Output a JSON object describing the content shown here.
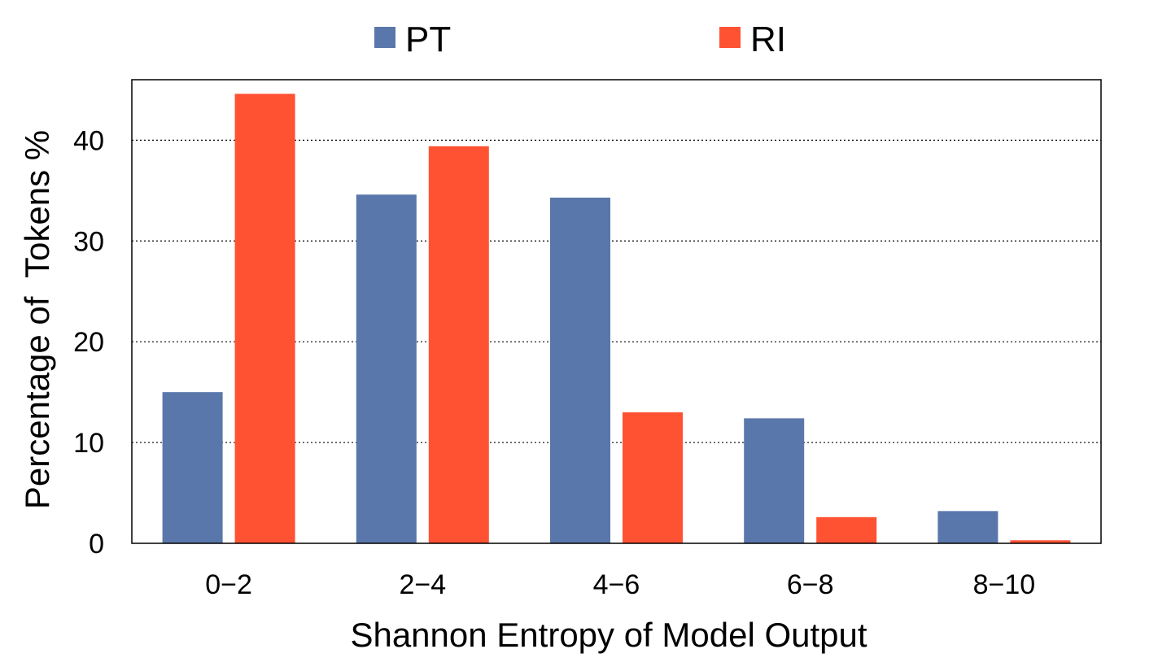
{
  "chart_data": {
    "type": "bar",
    "categories": [
      "0−2",
      "2−4",
      "4−6",
      "6−8",
      "8−10"
    ],
    "series": [
      {
        "name": "PT",
        "color": "#5a77ab",
        "values": [
          15.0,
          34.6,
          34.3,
          12.4,
          3.2
        ]
      },
      {
        "name": "RI",
        "color": "#ff5233",
        "values": [
          44.6,
          39.4,
          13.0,
          2.6,
          0.3
        ]
      }
    ],
    "xlabel": "Shannon Entropy of Model Output",
    "ylabel": "Percentage of  Tokens %",
    "ylim": [
      0,
      46
    ],
    "yticks": [
      0,
      10,
      20,
      30,
      40
    ],
    "grid": "horizontal dotted",
    "legend_position": "top"
  }
}
